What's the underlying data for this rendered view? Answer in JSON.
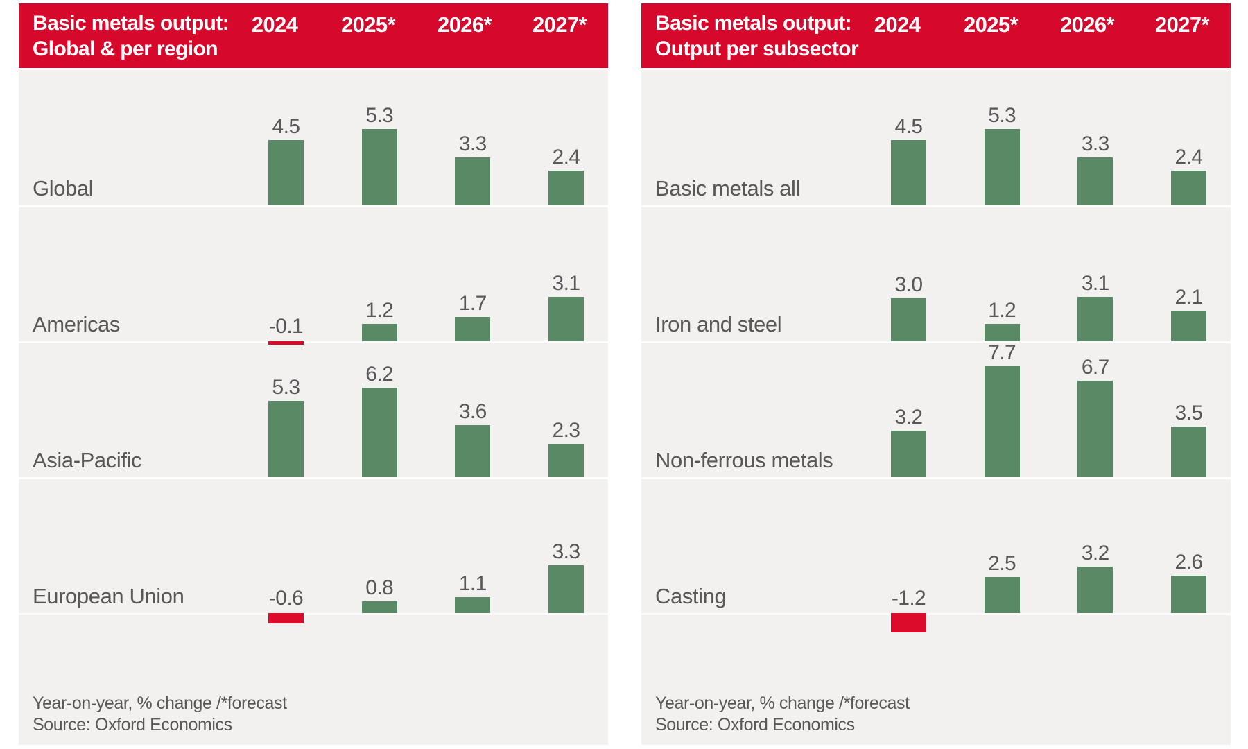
{
  "colors": {
    "header_bg": "#d6092c",
    "header_text": "#ffffff",
    "positive_bar": "#5a8a65",
    "negative_bar": "#dc0b2b",
    "band_bg": "#f2f1ef",
    "text_gray": "#595856"
  },
  "footer": {
    "note": "Year-on-year, % change /*forecast",
    "source": "Source: Oxford Economics"
  },
  "chart_data": [
    {
      "type": "bar",
      "title": "Basic metals output: Global & per region",
      "title_lines": [
        "Basic metals output:",
        "Global & per region"
      ],
      "columns": [
        "2024",
        "2025*",
        "2026*",
        "2027*"
      ],
      "rows": [
        {
          "label": "Global",
          "values": [
            4.5,
            5.3,
            3.3,
            2.4
          ]
        },
        {
          "label": "Americas",
          "values": [
            -0.1,
            1.2,
            1.7,
            3.1
          ]
        },
        {
          "label": "Asia-Pacific",
          "values": [
            5.3,
            6.2,
            3.6,
            2.3
          ]
        },
        {
          "label": "European Union",
          "values": [
            -0.6,
            0.8,
            1.1,
            3.3
          ]
        }
      ],
      "ylabel": "Year-on-year, % change",
      "footnote": "Year-on-year, % change /*forecast",
      "source": "Source: Oxford Economics",
      "legend_position": "none",
      "grid": false
    },
    {
      "type": "bar",
      "title": "Basic metals output: Output per subsector",
      "title_lines": [
        "Basic metals output:",
        "Output per subsector"
      ],
      "columns": [
        "2024",
        "2025*",
        "2026*",
        "2027*"
      ],
      "rows": [
        {
          "label": "Basic metals all",
          "values": [
            4.5,
            5.3,
            3.3,
            2.4
          ]
        },
        {
          "label": "Iron and steel",
          "values": [
            3.0,
            1.2,
            3.1,
            2.1
          ]
        },
        {
          "label": "Non-ferrous metals",
          "values": [
            3.2,
            7.7,
            6.7,
            3.5
          ]
        },
        {
          "label": "Casting",
          "values": [
            -1.2,
            2.5,
            3.2,
            2.6
          ]
        }
      ],
      "ylabel": "Year-on-year, % change",
      "footnote": "Year-on-year, % change /*forecast",
      "source": "Source: Oxford Economics",
      "legend_position": "none",
      "grid": false
    }
  ]
}
